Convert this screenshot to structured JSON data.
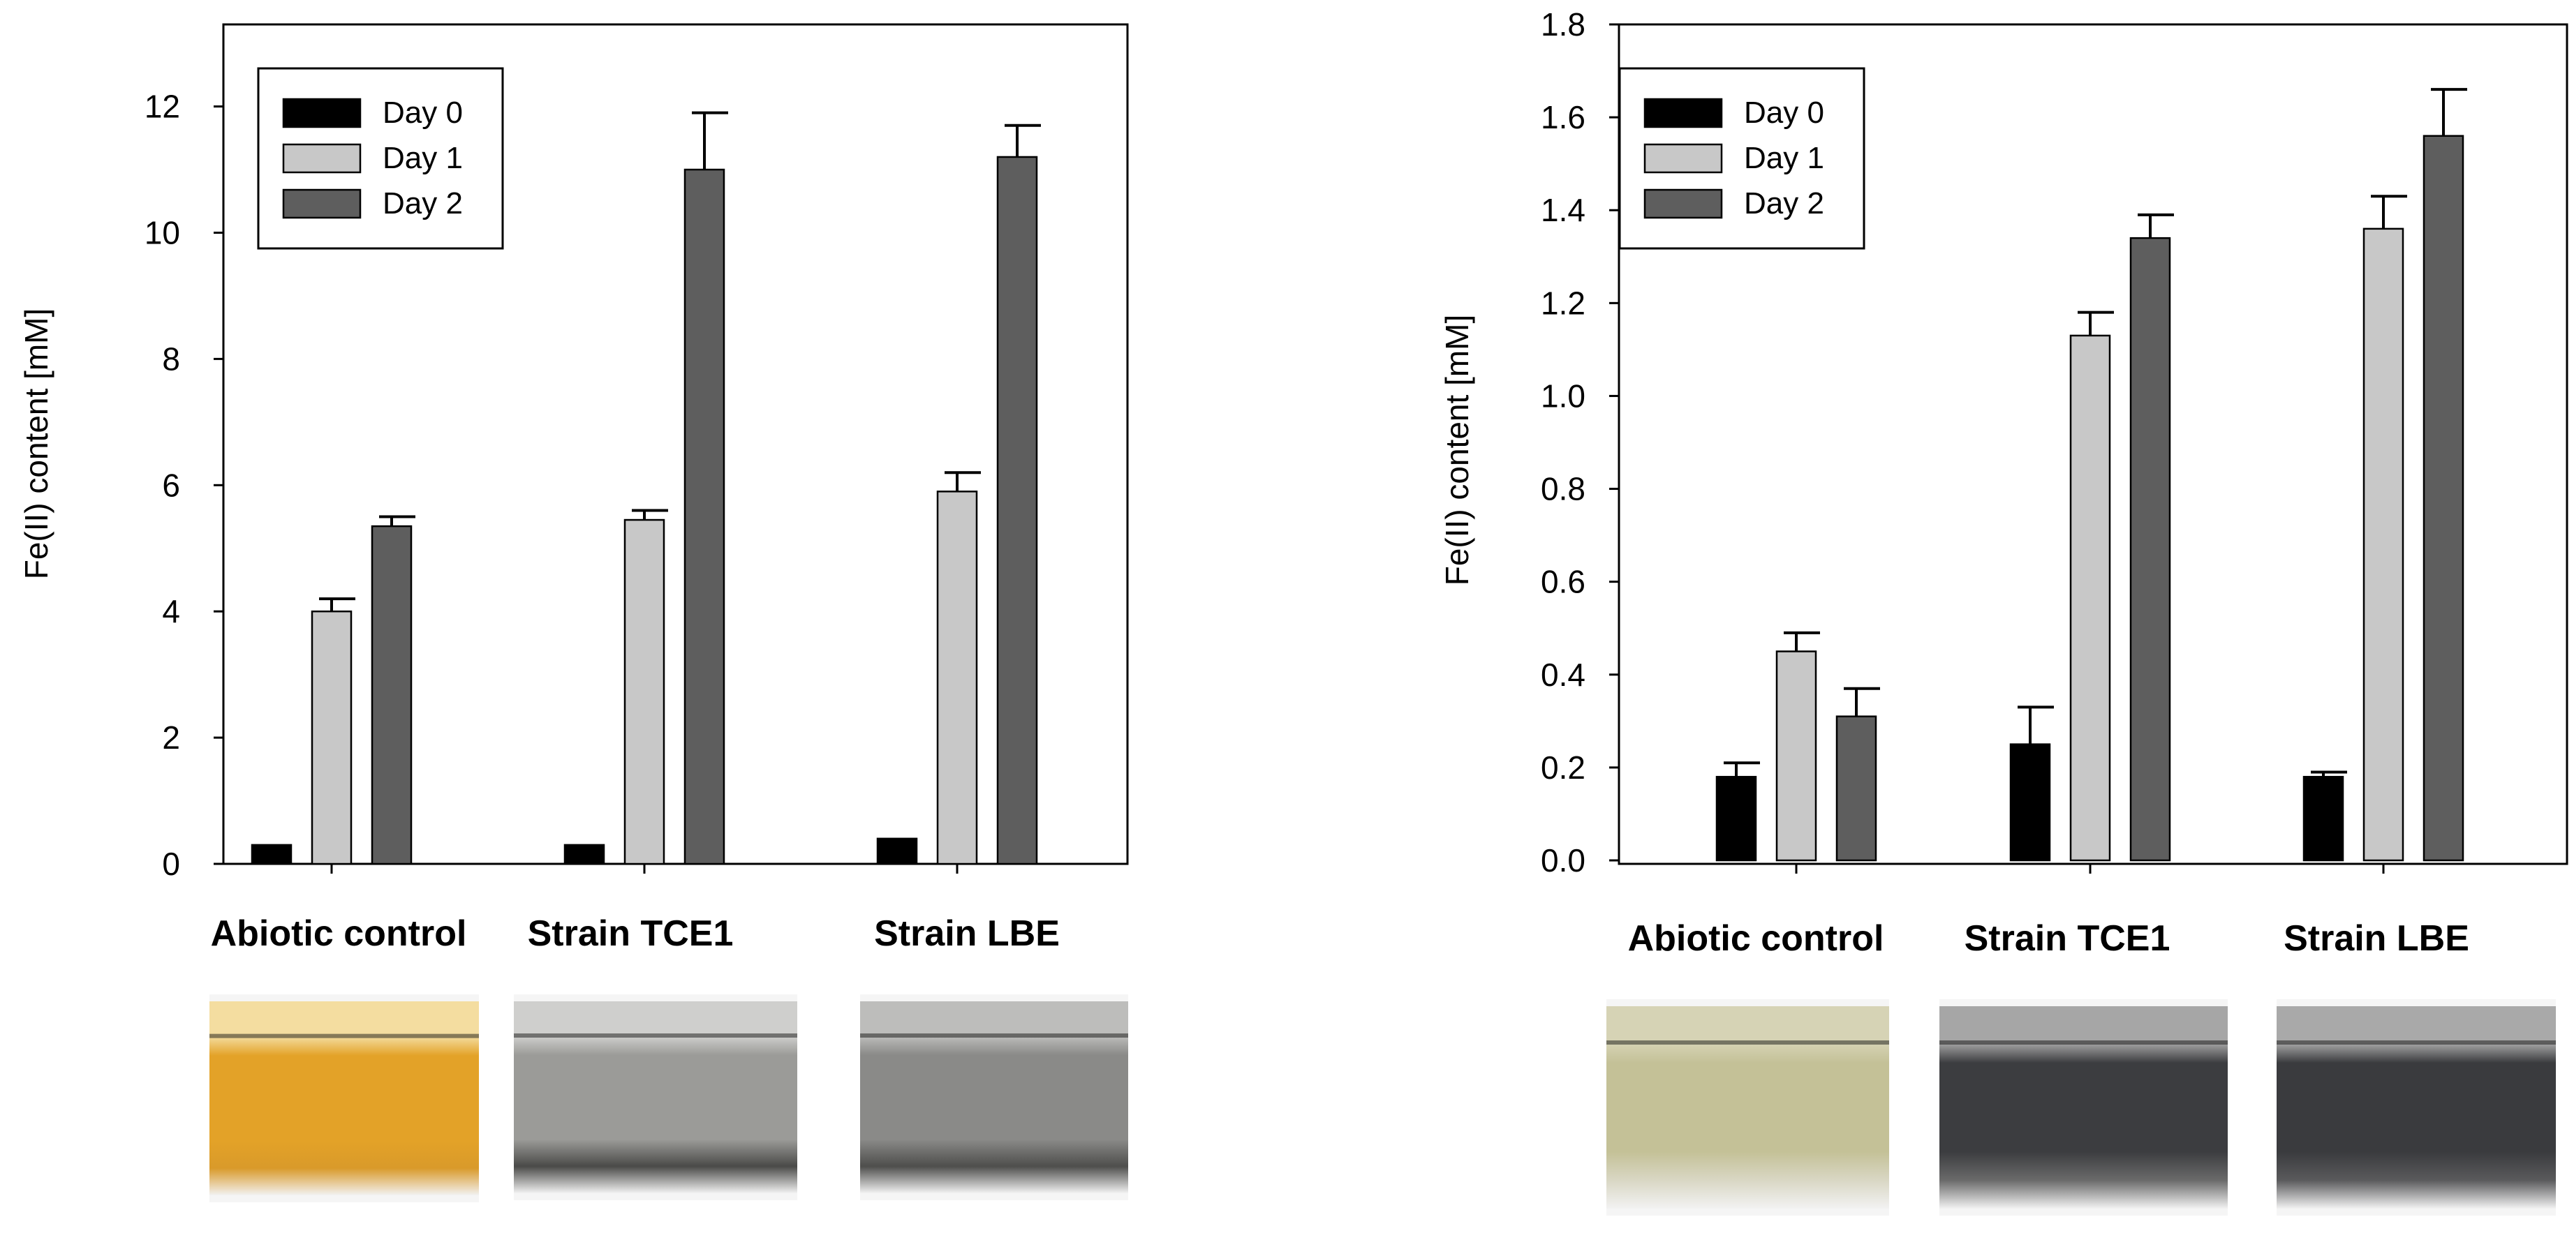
{
  "colors": {
    "Day 0": "#000000",
    "Day 1": "#c8c8c8",
    "Day 2": "#5e5e5e"
  },
  "chart_data": [
    {
      "type": "bar",
      "ylabel": "Fe(II) content [mM]",
      "ylim": [
        0,
        13.3
      ],
      "yticks": [
        0,
        2,
        4,
        6,
        8,
        10,
        12
      ],
      "tick_decimals": 0,
      "grid": false,
      "legend_position": "top-left",
      "categories": [
        "Abiotic control",
        "Strain TCE1",
        "Strain LBE"
      ],
      "series": [
        {
          "name": "Day 0",
          "values": [
            0.3,
            0.3,
            0.4
          ],
          "errors": [
            0.0,
            0.0,
            0.0
          ]
        },
        {
          "name": "Day 1",
          "values": [
            4.0,
            5.45,
            5.9
          ],
          "errors": [
            0.2,
            0.15,
            0.3
          ]
        },
        {
          "name": "Day 2",
          "values": [
            5.35,
            11.0,
            11.2
          ],
          "errors": [
            0.15,
            0.9,
            0.5
          ]
        }
      ]
    },
    {
      "type": "bar",
      "ylabel": "Fe(II) content [mM]",
      "ylim": [
        0,
        1.8
      ],
      "yticks": [
        0.0,
        0.2,
        0.4,
        0.6,
        0.8,
        1.0,
        1.2,
        1.4,
        1.6,
        1.8
      ],
      "tick_decimals": 1,
      "grid": false,
      "legend_position": "top-left",
      "categories": [
        "Abiotic control",
        "Strain TCE1",
        "Strain LBE"
      ],
      "series": [
        {
          "name": "Day 0",
          "values": [
            0.18,
            0.25,
            0.18
          ],
          "errors": [
            0.03,
            0.08,
            0.01
          ]
        },
        {
          "name": "Day 1",
          "values": [
            0.45,
            1.13,
            1.36
          ],
          "errors": [
            0.04,
            0.05,
            0.07
          ]
        },
        {
          "name": "Day 2",
          "values": [
            0.31,
            1.34,
            1.56
          ],
          "errors": [
            0.06,
            0.05,
            0.1
          ]
        }
      ]
    }
  ],
  "photos": [
    {
      "name": "abiotic-control-photo-1",
      "liquid": "#e3a228",
      "top": "#f4dda0",
      "bottom": "#d99a2a"
    },
    {
      "name": "strain-tce1-photo-1",
      "liquid": "#9b9b98",
      "top": "#cfcfcd",
      "bottom": "#4a4a48"
    },
    {
      "name": "strain-lbe-photo-1",
      "liquid": "#8a8a88",
      "top": "#bdbdbb",
      "bottom": "#4e4e4c"
    },
    {
      "name": "abiotic-control-photo-2",
      "liquid": "#c4c197",
      "top": "#d6d3b5",
      "bottom": "#d9d7c4"
    },
    {
      "name": "strain-tce1-photo-2",
      "liquid": "#3c3d40",
      "top": "#a6a6a6",
      "bottom": "#6a6a6a"
    },
    {
      "name": "strain-lbe-photo-2",
      "liquid": "#3a3b3e",
      "top": "#a9a9a9",
      "bottom": "#5a5a5c"
    }
  ]
}
